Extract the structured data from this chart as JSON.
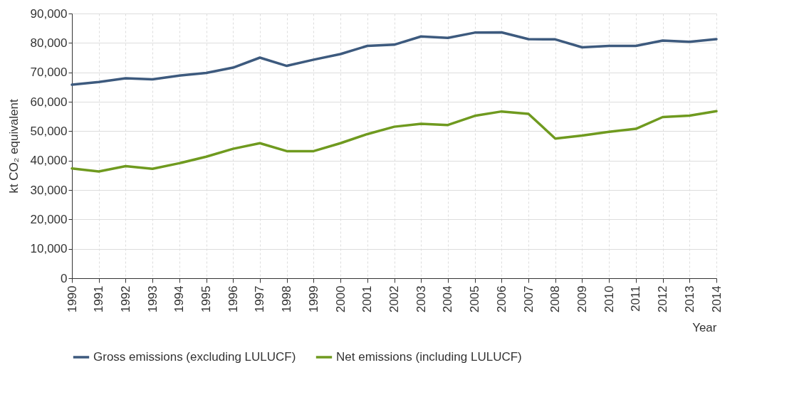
{
  "chart_data": {
    "type": "line",
    "xlabel": "Year",
    "ylabel": "kt CO₂ equivalent",
    "categories": [
      "1990",
      "1991",
      "1992",
      "1993",
      "1994",
      "1995",
      "1996",
      "1997",
      "1998",
      "1999",
      "2000",
      "2001",
      "2002",
      "2003",
      "2004",
      "2005",
      "2006",
      "2007",
      "2008",
      "2009",
      "2010",
      "2011",
      "2012",
      "2013",
      "2014"
    ],
    "series": [
      {
        "name": "Gross emissions (excluding LULUCF)",
        "color": "#3d5a7e",
        "values": [
          65800,
          66700,
          68000,
          67600,
          68900,
          69800,
          71600,
          75000,
          72200,
          74300,
          76200,
          79000,
          79400,
          82200,
          81700,
          83500,
          83600,
          81300,
          81200,
          78500,
          79000,
          79000,
          80800,
          80400,
          81300
        ]
      },
      {
        "name": "Net emissions (including LULUCF)",
        "color": "#6f9a1f",
        "values": [
          37300,
          36300,
          38100,
          37200,
          39100,
          41300,
          44000,
          45900,
          43200,
          43200,
          45900,
          49000,
          51500,
          52500,
          52100,
          55200,
          56700,
          55900,
          47500,
          48500,
          49800,
          50800,
          54800,
          55300,
          56800
        ]
      }
    ],
    "ylim": [
      0,
      90000
    ],
    "yticks": [
      0,
      {
        "value": 10000,
        "label": "10,000"
      },
      {
        "value": 20000,
        "label": "20,000"
      },
      {
        "value": 30000,
        "label": "30,000"
      },
      {
        "value": 40000,
        "label": "40,000"
      },
      {
        "value": 50000,
        "label": "50,000"
      },
      {
        "value": 60000,
        "label": "60,000"
      },
      {
        "value": 70000,
        "label": "70,000"
      },
      {
        "value": 80000,
        "label": "80,000"
      },
      {
        "value": 90000,
        "label": "90,000"
      }
    ],
    "grid": true,
    "legend": "bottom",
    "line_style": "solid",
    "marker": "none"
  }
}
